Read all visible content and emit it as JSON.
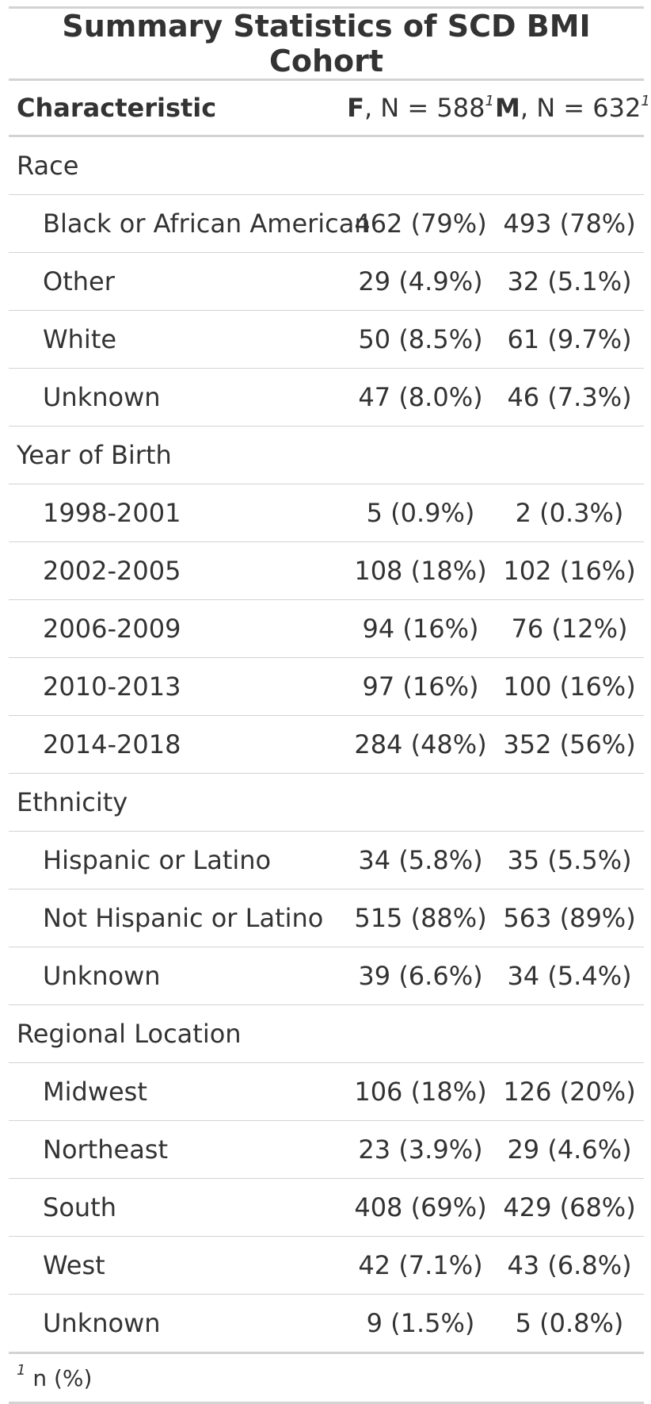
{
  "table": {
    "title": "Summary Statistics of SCD BMI Cohort",
    "headers": {
      "characteristic": "Characteristic",
      "f_label": "F",
      "f_n": ", N = 588",
      "m_label": "M",
      "m_n": ", N = 632",
      "footnote_marker": "1"
    },
    "groups": [
      {
        "label": "Race",
        "rows": [
          {
            "label": "Black or African American",
            "f": "462 (79%)",
            "m": "493 (78%)"
          },
          {
            "label": "Other",
            "f": "29 (4.9%)",
            "m": "32 (5.1%)"
          },
          {
            "label": "White",
            "f": "50 (8.5%)",
            "m": "61 (9.7%)"
          },
          {
            "label": "Unknown",
            "f": "47 (8.0%)",
            "m": "46 (7.3%)"
          }
        ]
      },
      {
        "label": "Year of Birth",
        "rows": [
          {
            "label": "1998-2001",
            "f": "5 (0.9%)",
            "m": "2 (0.3%)"
          },
          {
            "label": "2002-2005",
            "f": "108 (18%)",
            "m": "102 (16%)"
          },
          {
            "label": "2006-2009",
            "f": "94 (16%)",
            "m": "76 (12%)"
          },
          {
            "label": "2010-2013",
            "f": "97 (16%)",
            "m": "100 (16%)"
          },
          {
            "label": "2014-2018",
            "f": "284 (48%)",
            "m": "352 (56%)"
          }
        ]
      },
      {
        "label": "Ethnicity",
        "rows": [
          {
            "label": "Hispanic or Latino",
            "f": "34 (5.8%)",
            "m": "35 (5.5%)"
          },
          {
            "label": "Not Hispanic or Latino",
            "f": "515 (88%)",
            "m": "563 (89%)"
          },
          {
            "label": "Unknown",
            "f": "39 (6.6%)",
            "m": "34 (5.4%)"
          }
        ]
      },
      {
        "label": "Regional Location",
        "rows": [
          {
            "label": "Midwest",
            "f": "106 (18%)",
            "m": "126 (20%)"
          },
          {
            "label": "Northeast",
            "f": "23 (3.9%)",
            "m": "29 (4.6%)"
          },
          {
            "label": "South",
            "f": "408 (69%)",
            "m": "429 (68%)"
          },
          {
            "label": "West",
            "f": "42 (7.1%)",
            "m": "43 (6.8%)"
          },
          {
            "label": "Unknown",
            "f": "9 (1.5%)",
            "m": "5 (0.8%)"
          }
        ]
      }
    ],
    "footnote": {
      "marker": "1",
      "text": " n (%)"
    }
  }
}
